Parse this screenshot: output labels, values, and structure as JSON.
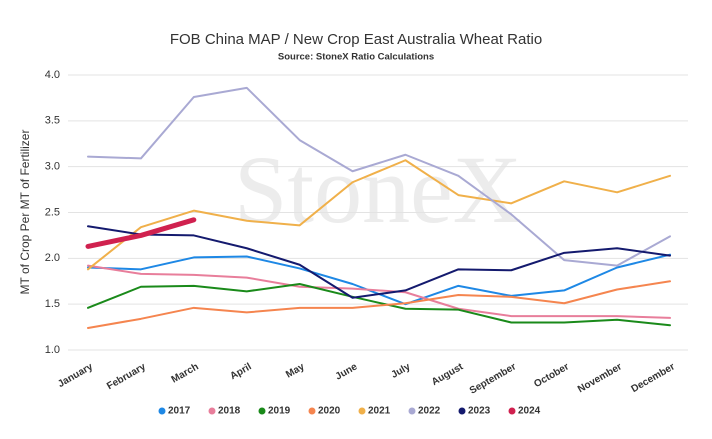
{
  "chart_data": {
    "type": "line",
    "title": "FOB China MAP / New Crop East Australia Wheat Ratio",
    "subtitle": "Source: StoneX Ratio Calculations",
    "watermark": "StoneX",
    "y_label": "MT of Crop Per MT of Fertilizer",
    "categories": [
      "January",
      "February",
      "March",
      "April",
      "May",
      "June",
      "July",
      "August",
      "September",
      "October",
      "November",
      "December"
    ],
    "ylim": [
      1,
      4
    ],
    "yticks": [
      {
        "value": 1,
        "label": "1.0"
      },
      1.5,
      {
        "value": 2,
        "label": "2.0"
      },
      2.5,
      {
        "value": 3,
        "label": "3.0"
      },
      3.5,
      {
        "value": 4,
        "label": "4.0"
      }
    ],
    "grid": true,
    "legend": "bottom",
    "series": [
      {
        "name": "2017",
        "color": "#1e88e5",
        "values": [
          1.9,
          1.88,
          2.01,
          2.02,
          1.89,
          1.72,
          1.5,
          1.7,
          1.59,
          1.65,
          1.9,
          2.04
        ]
      },
      {
        "name": "2018",
        "color": "#e87e9b",
        "values": [
          1.92,
          1.83,
          1.82,
          1.79,
          1.69,
          1.67,
          1.63,
          1.45,
          1.37,
          1.37,
          1.37,
          1.35
        ]
      },
      {
        "name": "2019",
        "color": "#1a8a1a",
        "values": [
          1.46,
          1.69,
          1.7,
          1.64,
          1.72,
          1.58,
          1.45,
          1.44,
          1.3,
          1.3,
          1.33,
          1.27
        ]
      },
      {
        "name": "2020",
        "color": "#f5854f",
        "values": [
          1.24,
          1.34,
          1.46,
          1.41,
          1.46,
          1.46,
          1.51,
          1.6,
          1.58,
          1.51,
          1.66,
          1.75
        ]
      },
      {
        "name": "2021",
        "color": "#f0b04a",
        "values": [
          1.88,
          2.34,
          2.52,
          2.41,
          2.36,
          2.83,
          3.07,
          2.69,
          2.6,
          2.84,
          2.72,
          2.9
        ]
      },
      {
        "name": "2022",
        "color": "#a9a9d3",
        "values": [
          3.11,
          3.09,
          3.76,
          3.86,
          3.29,
          2.95,
          3.13,
          2.9,
          2.48,
          1.98,
          1.92,
          2.24
        ]
      },
      {
        "name": "2023",
        "color": "#141a6e",
        "values": [
          2.35,
          2.26,
          2.25,
          2.11,
          1.93,
          1.57,
          1.65,
          1.88,
          1.87,
          2.06,
          2.11,
          2.03
        ]
      },
      {
        "name": "2024",
        "color": "#d0214f",
        "values": [
          2.13,
          2.25,
          2.42,
          null,
          null,
          null,
          null,
          null,
          null,
          null,
          null,
          null
        ]
      }
    ]
  }
}
